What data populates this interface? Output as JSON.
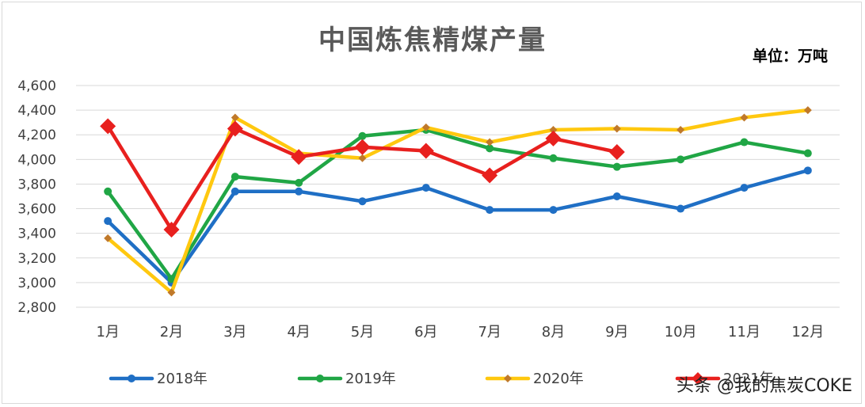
{
  "chart_data": {
    "type": "line",
    "title": "中国炼焦精煤产量",
    "unit_label": "单位：万吨",
    "categories": [
      "1月",
      "2月",
      "3月",
      "4月",
      "5月",
      "6月",
      "7月",
      "8月",
      "9月",
      "10月",
      "11月",
      "12月"
    ],
    "y_ticks": [
      "2,800",
      "3,000",
      "3,200",
      "3,400",
      "3,600",
      "3,800",
      "4,000",
      "4,200",
      "4,400",
      "4,600"
    ],
    "ylim": [
      2800,
      4600
    ],
    "grid": true,
    "legend_position": "bottom",
    "series": [
      {
        "name": "2018年",
        "color": "#1F6FC5",
        "marker": "circle",
        "values": [
          3500,
          3000,
          3740,
          3740,
          3660,
          3770,
          3590,
          3590,
          3700,
          3600,
          3770,
          3910
        ]
      },
      {
        "name": "2019年",
        "color": "#20A645",
        "marker": "circle",
        "values": [
          3740,
          3030,
          3860,
          3810,
          4190,
          4240,
          4090,
          4010,
          3940,
          4000,
          4140,
          4050
        ]
      },
      {
        "name": "2020年",
        "color": "#FFC80F",
        "marker": "small-diamond",
        "values": [
          3360,
          2920,
          4340,
          4050,
          4010,
          4260,
          4140,
          4240,
          4250,
          4240,
          4340,
          4400
        ]
      },
      {
        "name": "2021年",
        "color": "#E8201E",
        "marker": "diamond",
        "values": [
          4270,
          3430,
          4250,
          4020,
          4100,
          4070,
          3870,
          4170,
          4060,
          null,
          null,
          null
        ]
      }
    ]
  },
  "watermark": "头条 @我的焦炭COKE"
}
